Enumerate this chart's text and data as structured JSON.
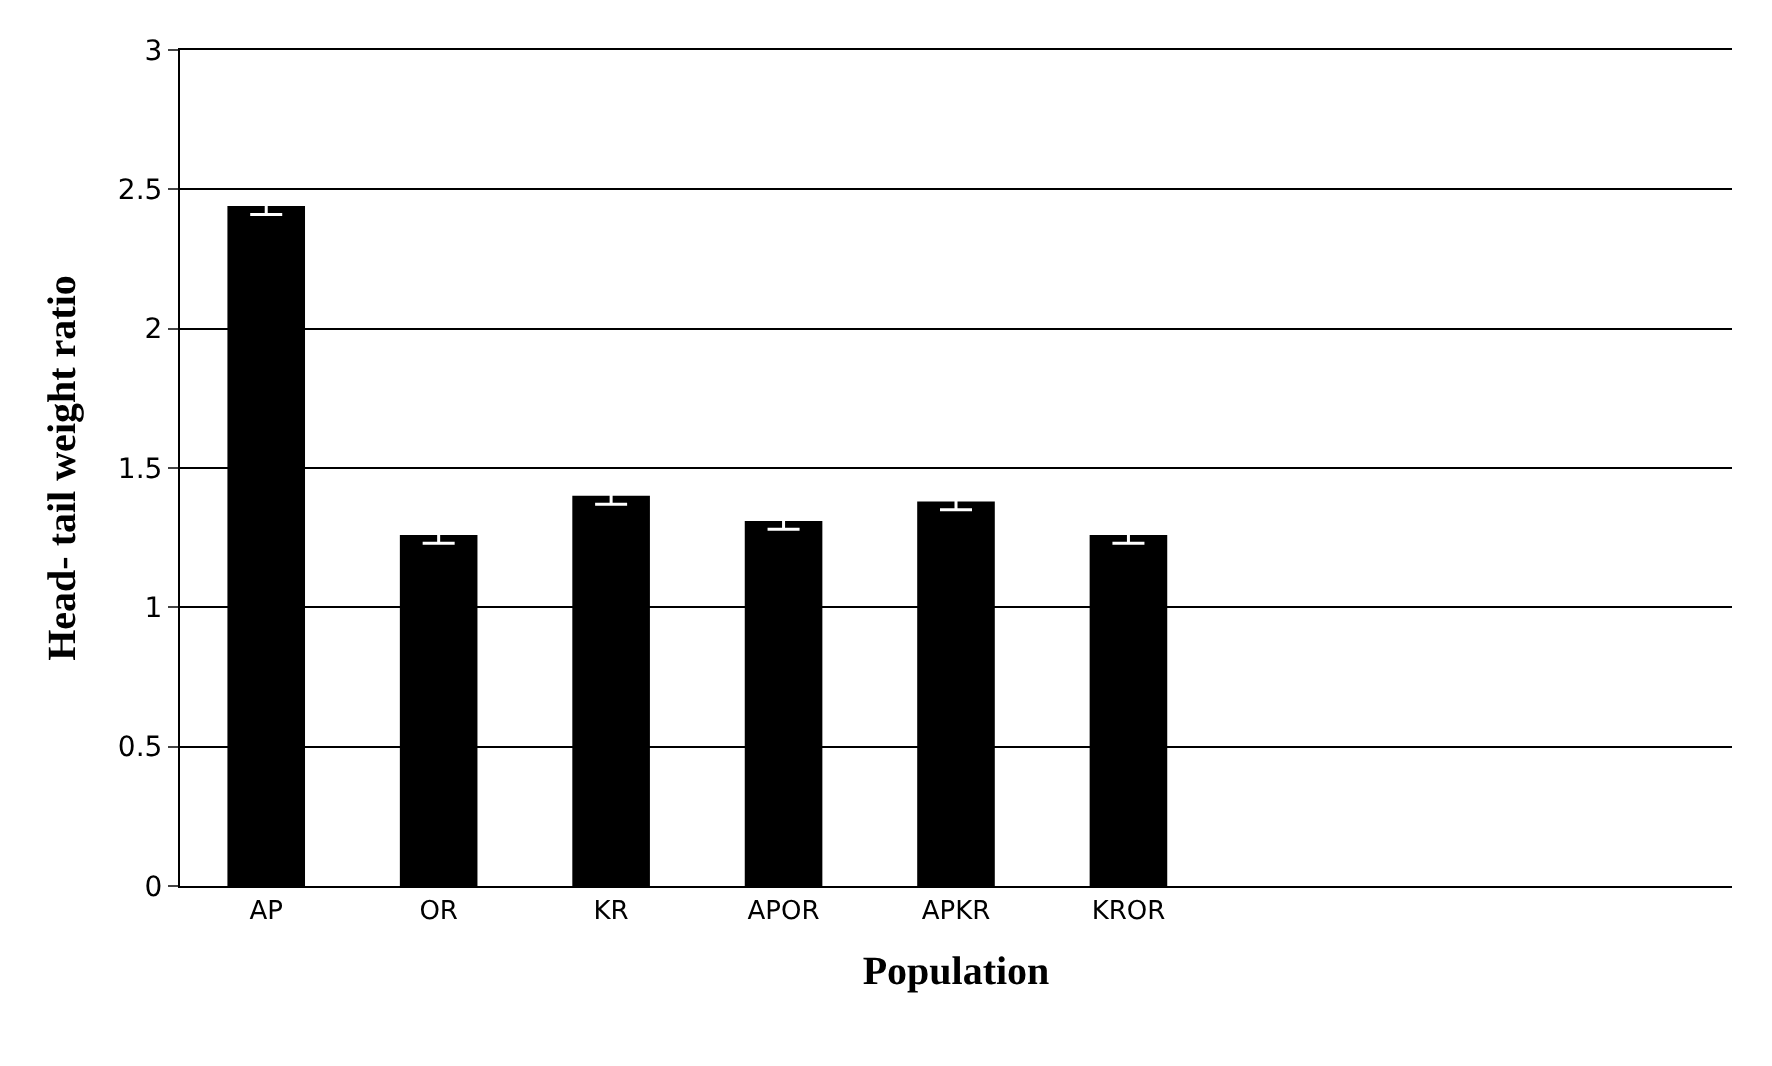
{
  "chart_data": {
    "type": "bar",
    "xlabel": "Population",
    "ylabel": "Head- tail weight ratio",
    "categories": [
      "AP",
      "OR",
      "KR",
      "APOR",
      "APKR",
      "KROR",
      null,
      null,
      null
    ],
    "values": [
      2.44,
      1.26,
      1.4,
      1.31,
      1.38,
      1.26,
      null,
      null,
      null
    ],
    "errors": [
      0.03,
      0.03,
      0.03,
      0.03,
      0.03,
      0.03,
      null,
      null,
      null
    ],
    "color": "#000000",
    "ylim": [
      0,
      3
    ],
    "yticks": [
      0,
      0.5,
      1,
      1.5,
      2,
      2.5,
      3
    ],
    "grid": "y",
    "legend": false
  }
}
